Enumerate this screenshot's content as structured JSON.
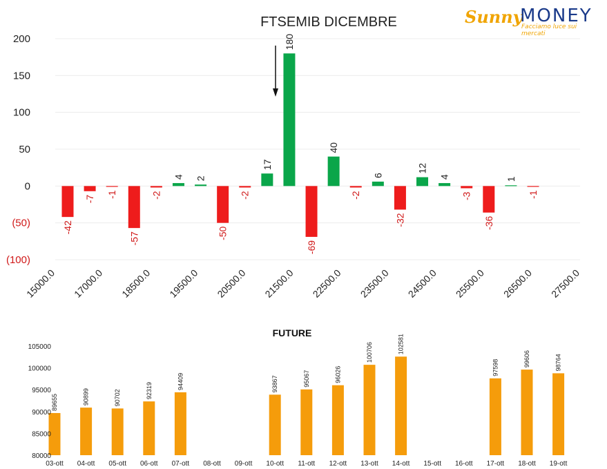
{
  "logo": {
    "word1": "Sunny",
    "word2": "MONEY",
    "tagline": "Facciamo luce sui mercati"
  },
  "chart_data": [
    {
      "type": "bar",
      "title": "FTSEMIB DICEMBRE",
      "ylim": [
        -100,
        200
      ],
      "y_ticks": [
        200,
        150,
        100,
        50,
        0,
        -50,
        -100
      ],
      "y_tick_labels": [
        "200",
        "150",
        "100",
        "50",
        "0",
        "(50)",
        "(100)"
      ],
      "x_ticks": [
        "15000.0",
        "17000.0",
        "18500.0",
        "19500.0",
        "20500.0",
        "21500.0",
        "22500.0",
        "23500.0",
        "24500.0",
        "25500.0",
        "26500.0",
        "27500.0"
      ],
      "grid": true,
      "positive_color": "#0aa64a",
      "negative_color": "#ee1c1c",
      "bars": [
        {
          "value": -42,
          "label": "-42"
        },
        {
          "value": -7,
          "label": "-7"
        },
        {
          "value": -1,
          "label": "-1"
        },
        {
          "value": -57,
          "label": "-57"
        },
        {
          "value": -2,
          "label": "-2"
        },
        {
          "value": 4,
          "label": "4"
        },
        {
          "value": 2,
          "label": "2"
        },
        {
          "value": -50,
          "label": "-50"
        },
        {
          "value": -2,
          "label": "-2"
        },
        {
          "value": 17,
          "label": "17"
        },
        {
          "value": 180,
          "label": "180"
        },
        {
          "value": -69,
          "label": "-69"
        },
        {
          "value": 40,
          "label": "40"
        },
        {
          "value": -2,
          "label": "-2"
        },
        {
          "value": 6,
          "label": "6"
        },
        {
          "value": -32,
          "label": "-32"
        },
        {
          "value": 12,
          "label": "12"
        },
        {
          "value": 4,
          "label": "4"
        },
        {
          "value": -3,
          "label": "-3"
        },
        {
          "value": -36,
          "label": "-36"
        },
        {
          "value": 1,
          "label": "1"
        },
        {
          "value": -1,
          "label": "-1"
        }
      ]
    },
    {
      "type": "bar",
      "title": "FUTURE",
      "ylim": [
        80000,
        105000
      ],
      "y_ticks": [
        105000,
        100000,
        95000,
        90000,
        85000,
        80000
      ],
      "grid": false,
      "color": "#f59c0b",
      "categories": [
        "03-ott",
        "04-ott",
        "05-ott",
        "06-ott",
        "07-ott",
        "08-ott",
        "09-ott",
        "10-ott",
        "11-ott",
        "12-ott",
        "13-ott",
        "14-ott",
        "15-ott",
        "16-ott",
        "17-ott",
        "18-ott",
        "19-ott"
      ],
      "values": [
        89655,
        90899,
        90702,
        92319,
        94409,
        null,
        null,
        93867,
        95067,
        96026,
        100706,
        102581,
        null,
        null,
        97598,
        99606,
        98764
      ]
    }
  ]
}
